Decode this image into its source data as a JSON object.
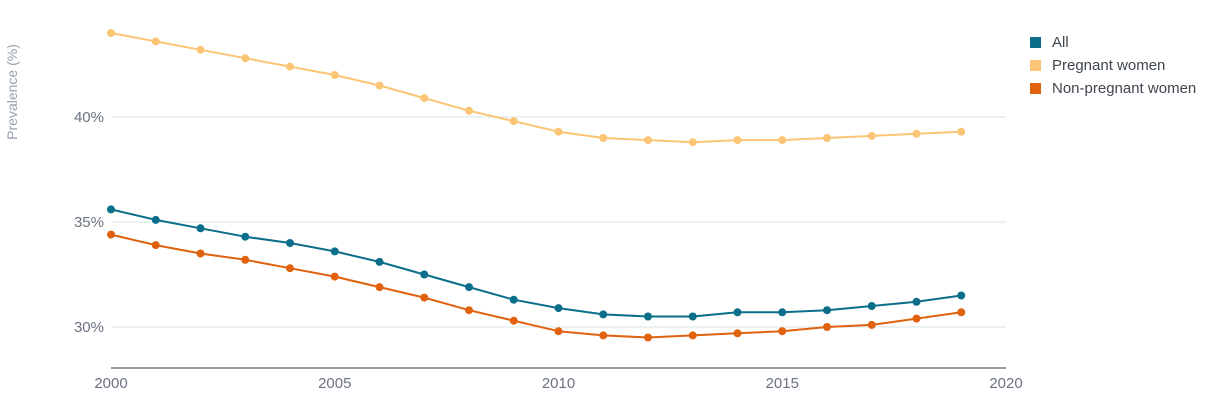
{
  "chart_data": {
    "type": "line",
    "title": "",
    "xlabel": "",
    "ylabel": "Prevalence (%)",
    "x": [
      2000,
      2001,
      2002,
      2003,
      2004,
      2005,
      2006,
      2007,
      2008,
      2009,
      2010,
      2011,
      2012,
      2013,
      2014,
      2015,
      2016,
      2017,
      2018,
      2019
    ],
    "xlim": [
      2000,
      2020
    ],
    "ylim": [
      28,
      44.5
    ],
    "x_ticks": [
      "2000",
      "2005",
      "2010",
      "2015",
      "2020"
    ],
    "y_ticks": [
      "30%",
      "35%",
      "40%"
    ],
    "grid": "horizontal",
    "legend_position": "top-right",
    "series": [
      {
        "name": "All",
        "color": "#0b6e8a",
        "values": [
          35.6,
          35.1,
          34.7,
          34.3,
          34.0,
          33.6,
          33.1,
          32.5,
          31.9,
          31.3,
          30.9,
          30.6,
          30.5,
          30.5,
          30.7,
          30.7,
          30.8,
          31.0,
          31.2,
          31.5
        ]
      },
      {
        "name": "Pregnant women",
        "color": "#fbc575",
        "values": [
          44.0,
          43.6,
          43.2,
          42.8,
          42.4,
          42.0,
          41.5,
          40.9,
          40.3,
          39.8,
          39.3,
          39.0,
          38.9,
          38.8,
          38.9,
          38.9,
          39.0,
          39.1,
          39.2,
          39.3
        ]
      },
      {
        "name": "Non-pregnant women",
        "color": "#e0610e",
        "values": [
          34.4,
          33.9,
          33.5,
          33.2,
          32.8,
          32.4,
          31.9,
          31.4,
          30.8,
          30.3,
          29.8,
          29.6,
          29.5,
          29.6,
          29.7,
          29.8,
          30.0,
          30.1,
          30.4,
          30.7
        ]
      }
    ]
  }
}
